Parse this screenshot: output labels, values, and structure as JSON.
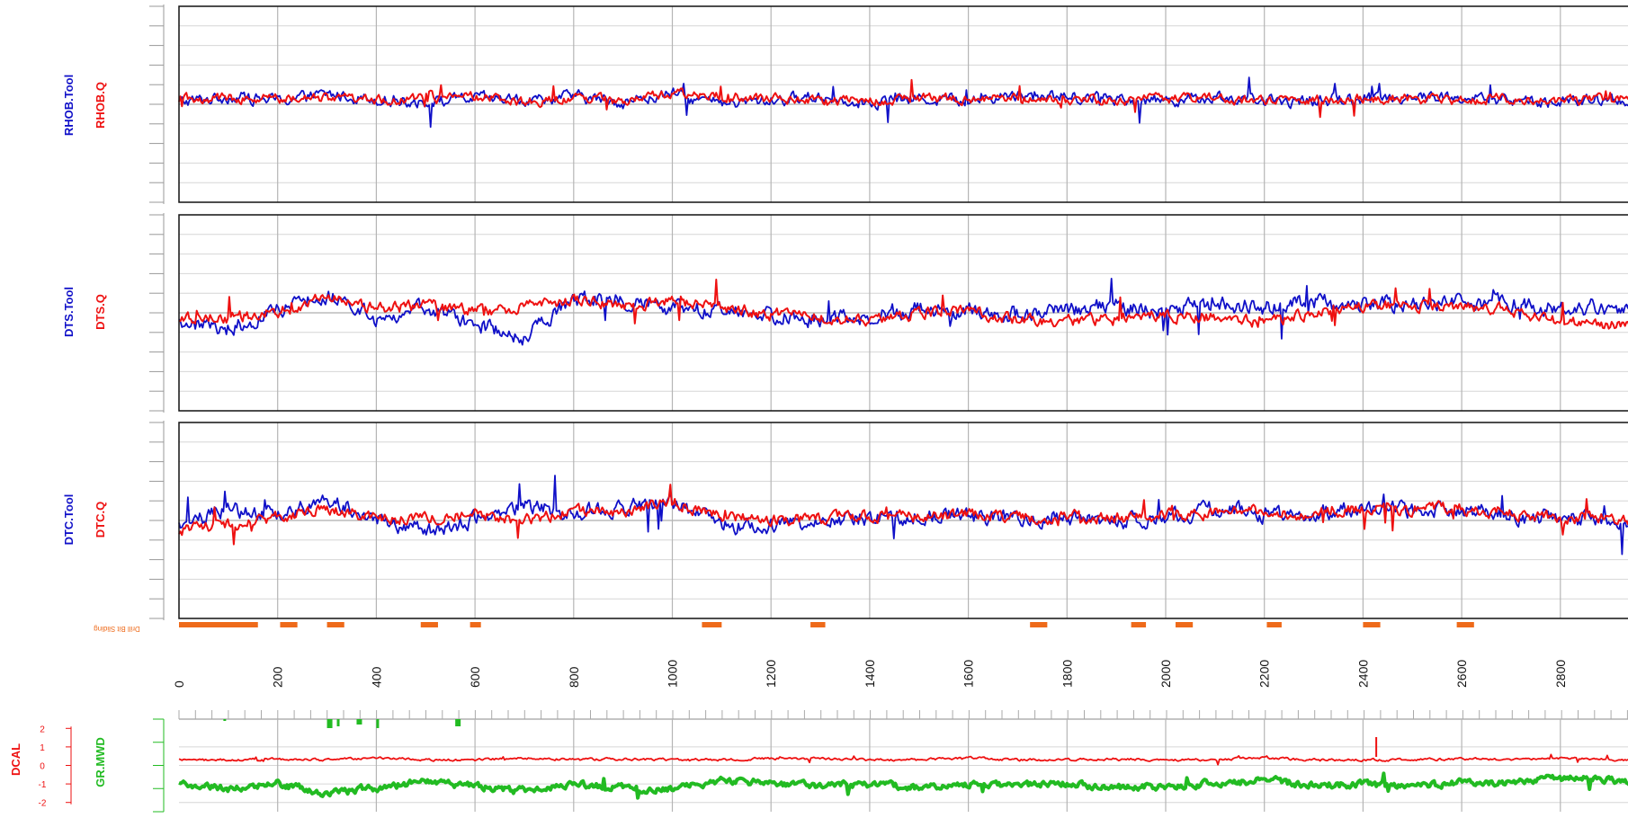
{
  "panels": [
    {
      "id": "rhob",
      "label_tool": "RHOB.Tool",
      "label_q": "RHOB.Q"
    },
    {
      "id": "dts",
      "label_tool": "DTS.Tool",
      "label_q": "DTS.Q"
    },
    {
      "id": "dtc",
      "label_tool": "DTC.Tool",
      "label_q": "DTC.Q"
    }
  ],
  "sliding": {
    "label": "Drill Bit Sliding",
    "intervals": [
      [
        0,
        160
      ],
      [
        205,
        240
      ],
      [
        300,
        335
      ],
      [
        490,
        525
      ],
      [
        590,
        612
      ],
      [
        1060,
        1100
      ],
      [
        1280,
        1310
      ],
      [
        1725,
        1760
      ],
      [
        1930,
        1960
      ],
      [
        2020,
        2055
      ],
      [
        2205,
        2235
      ],
      [
        2400,
        2435
      ],
      [
        2590,
        2625
      ]
    ]
  },
  "depth_axis": {
    "ticks": [
      "0",
      "200",
      "400",
      "600",
      "800",
      "1000",
      "1200",
      "1400",
      "1600",
      "1800",
      "2000",
      "2200",
      "2400",
      "2600",
      "2800"
    ]
  },
  "bottom_panel": {
    "label_dcal": "DCAL",
    "label_gr": "GR.MWD",
    "dcal_ticks": [
      "2",
      "1",
      "0",
      "-1",
      "-2"
    ]
  },
  "colors": {
    "tool": "#1010c8",
    "q": "#ee1111",
    "gr": "#22bb22",
    "sliding": "#ee6a1a",
    "grid": "#bdbdbd",
    "frame": "#111111"
  },
  "chart_data": [
    {
      "type": "line",
      "x": [
        0,
        100,
        200,
        300,
        400,
        500,
        600,
        700,
        800,
        900,
        1000,
        1100,
        1200,
        1300,
        1400,
        1500,
        1600,
        1700,
        1800,
        1900,
        2000,
        2100,
        2200,
        2300,
        2400,
        2500,
        2600,
        2700,
        2800,
        2900
      ],
      "xlim": [
        0,
        2940
      ],
      "ylim": [
        -5,
        5
      ],
      "series": [
        {
          "name": "RHOB.Tool",
          "values": [
            0.1,
            0.4,
            0.2,
            0.5,
            0.3,
            0.1,
            0.3,
            0.2,
            0.4,
            0.1,
            0.5,
            0.0,
            0.2,
            0.4,
            0.1,
            0.3,
            0.2,
            0.5,
            0.4,
            0.3,
            0.2,
            0.4,
            0.1,
            0.2,
            0.3,
            0.4,
            0.3,
            0.2,
            0.1,
            0.2
          ]
        },
        {
          "name": "RHOB.Q",
          "values": [
            0.3,
            0.3,
            0.3,
            0.3,
            0.2,
            0.3,
            0.4,
            0.1,
            0.3,
            0.2,
            0.6,
            0.4,
            0.3,
            0.2,
            0.2,
            0.3,
            0.3,
            0.3,
            0.2,
            0.2,
            0.3,
            0.3,
            0.1,
            0.2,
            0.3,
            0.3,
            0.2,
            0.3,
            0.2,
            0.3
          ]
        }
      ]
    },
    {
      "type": "line",
      "x": [
        0,
        100,
        200,
        300,
        400,
        500,
        600,
        700,
        800,
        900,
        1000,
        1100,
        1200,
        1300,
        1400,
        1500,
        1600,
        1700,
        1800,
        1900,
        2000,
        2100,
        2200,
        2300,
        2400,
        2500,
        2600,
        2700,
        2800,
        2900
      ],
      "xlim": [
        0,
        2940
      ],
      "ylim": [
        -5,
        5
      ],
      "series": [
        {
          "name": "DTS.Tool",
          "values": [
            -0.5,
            -0.8,
            0.2,
            1.0,
            -0.3,
            0.2,
            -0.6,
            -1.2,
            0.7,
            0.6,
            0.3,
            0.0,
            -0.1,
            -0.3,
            -0.1,
            0.2,
            0.1,
            -0.1,
            0.2,
            0.3,
            0.1,
            0.5,
            0.3,
            0.6,
            0.4,
            0.5,
            0.6,
            0.5,
            0.2,
            0.3
          ]
        },
        {
          "name": "DTS.Q",
          "values": [
            -0.2,
            -0.3,
            0.1,
            0.8,
            0.2,
            0.4,
            0.1,
            0.3,
            0.6,
            0.4,
            0.6,
            0.3,
            -0.1,
            -0.2,
            -0.4,
            0.0,
            0.1,
            -0.3,
            -0.4,
            -0.3,
            -0.1,
            -0.2,
            -0.5,
            0.0,
            0.3,
            0.4,
            0.3,
            0.1,
            -0.5,
            -0.6
          ]
        }
      ]
    },
    {
      "type": "line",
      "x": [
        0,
        100,
        200,
        300,
        400,
        500,
        600,
        700,
        800,
        900,
        1000,
        1100,
        1200,
        1300,
        1400,
        1500,
        1600,
        1700,
        1800,
        1900,
        2000,
        2100,
        2200,
        2300,
        2400,
        2500,
        2600,
        2700,
        2800,
        2900
      ],
      "xlim": [
        0,
        2940
      ],
      "ylim": [
        -5,
        5
      ],
      "series": [
        {
          "name": "DTC.Tool",
          "values": [
            -0.3,
            0.6,
            0.3,
            1.0,
            0.2,
            -0.6,
            0.1,
            0.7,
            0.5,
            0.6,
            0.9,
            -0.2,
            -0.3,
            0.0,
            0.1,
            0.3,
            0.2,
            0.1,
            0.2,
            0.0,
            0.2,
            0.6,
            0.3,
            0.4,
            0.6,
            0.5,
            0.6,
            0.3,
            0.1,
            0.0
          ]
        },
        {
          "name": "DTC.Q",
          "values": [
            -0.5,
            -0.2,
            0.2,
            0.6,
            0.1,
            0.1,
            0.3,
            0.0,
            0.5,
            0.4,
            1.0,
            0.2,
            0.0,
            0.1,
            0.3,
            0.2,
            0.3,
            0.1,
            0.2,
            0.1,
            0.3,
            0.4,
            0.5,
            0.3,
            0.6,
            0.6,
            0.6,
            0.4,
            0.1,
            0.1
          ]
        }
      ]
    },
    {
      "type": "line",
      "x": [
        0,
        100,
        200,
        300,
        400,
        500,
        600,
        700,
        800,
        900,
        1000,
        1100,
        1200,
        1300,
        1400,
        1500,
        1600,
        1700,
        1800,
        1900,
        2000,
        2100,
        2200,
        2300,
        2400,
        2500,
        2600,
        2700,
        2800,
        2900
      ],
      "xlim": [
        0,
        2940
      ],
      "ylim": [
        -2.5,
        2.5
      ],
      "yticks": [
        2,
        1,
        0,
        -1,
        -2
      ],
      "series": [
        {
          "name": "DCAL",
          "values": [
            0.3,
            0.3,
            0.35,
            0.3,
            0.4,
            0.3,
            0.3,
            0.4,
            0.3,
            0.35,
            0.3,
            0.3,
            0.4,
            0.35,
            0.3,
            0.3,
            0.4,
            0.3,
            0.3,
            0.35,
            0.3,
            0.3,
            0.4,
            0.3,
            0.3,
            0.3,
            0.35,
            0.3,
            0.4,
            0.3
          ]
        },
        {
          "name": "GR.MWD",
          "values": [
            -0.9,
            -1.3,
            -1.0,
            -1.5,
            -1.2,
            -0.9,
            -1.1,
            -1.4,
            -1.0,
            -1.2,
            -1.3,
            -0.8,
            -1.0,
            -1.1,
            -1.0,
            -1.2,
            -1.0,
            -1.1,
            -1.0,
            -1.2,
            -1.1,
            -1.0,
            -0.8,
            -1.1,
            -1.0,
            -1.2,
            -0.9,
            -1.0,
            -0.6,
            -0.8
          ]
        }
      ]
    }
  ]
}
